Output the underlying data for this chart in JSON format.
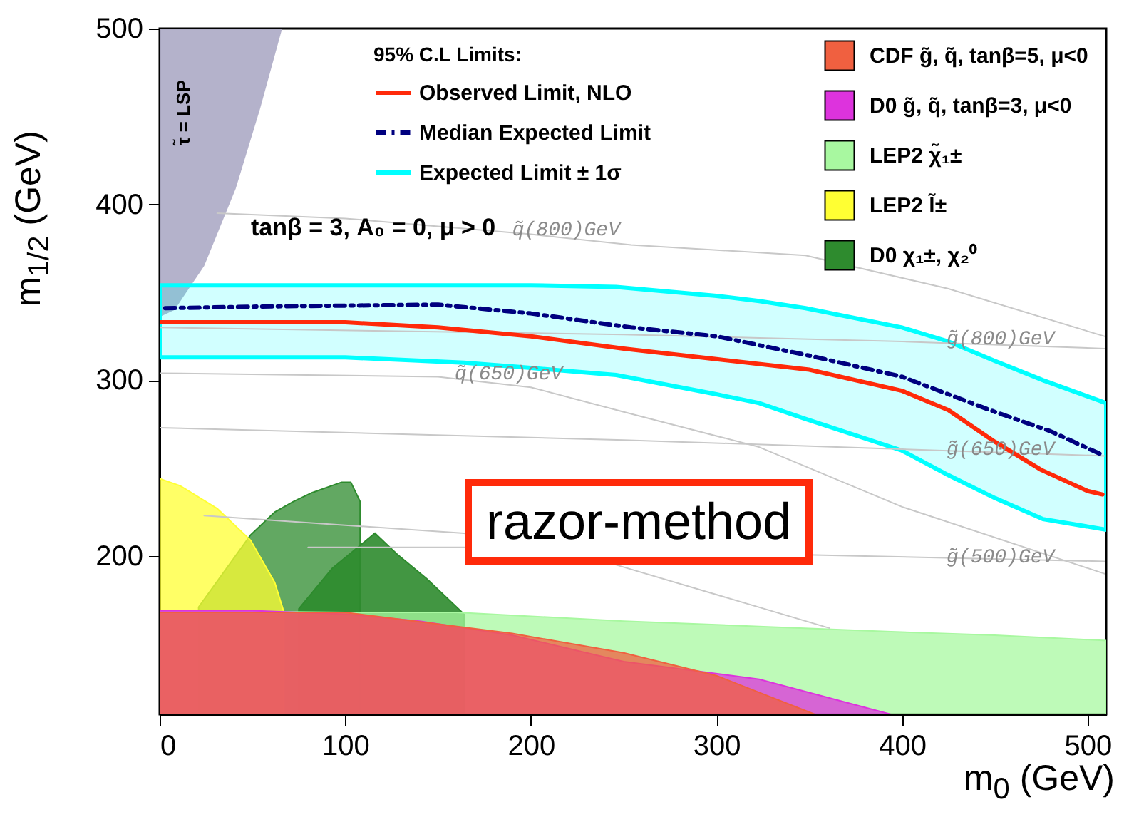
{
  "chart_data": {
    "type": "line",
    "xlabel": "m$_{0}$ (GeV)",
    "ylabel": "m$_{1/2}$ (GeV)",
    "legend_title": "95% C.L Limits:",
    "legend": "top right",
    "xlim": [
      0,
      510
    ],
    "ylim": [
      110,
      500
    ],
    "xticks": [
      0,
      100,
      200,
      300,
      400,
      500
    ],
    "yticks": [
      200,
      300,
      400,
      500
    ],
    "series": [
      {
        "name": "CDF  g̃, q̃, tanβ=5, μ<0",
        "type": "area",
        "color": "#f06040",
        "x": [
          0,
          100,
          190,
          250,
          300,
          353
        ],
        "values": [
          168,
          168,
          156,
          145,
          132,
          110
        ]
      },
      {
        "name": "D0  g̃, q̃, tanβ=3, μ<0",
        "type": "area",
        "color": "#dd33dd",
        "x": [
          0,
          50,
          100,
          140,
          190,
          250,
          323,
          394
        ],
        "values": [
          169,
          169,
          167,
          163,
          155,
          140,
          130,
          110
        ]
      },
      {
        "name": "LEP2  χ̃₁±",
        "type": "area",
        "color": "#a8f8a0",
        "x": [
          0,
          100,
          160,
          250,
          323,
          394,
          450,
          510
        ],
        "values": [
          169,
          168,
          168,
          163,
          160,
          157,
          155,
          152
        ]
      },
      {
        "name": "LEP2  l̃±",
        "type": "area",
        "color": "#ffff33",
        "x": [
          0,
          11,
          31,
          49,
          62,
          67
        ],
        "values": [
          244,
          240,
          227,
          209,
          185,
          168
        ]
      },
      {
        "name": "D0  χ₁±, χ₂⁰",
        "type": "area",
        "color": "#2e8b2e",
        "x": [
          21,
          49,
          62,
          72,
          82,
          98,
          103,
          108
        ],
        "values": [
          171,
          212,
          225,
          231,
          236,
          242,
          242,
          231
        ]
      },
      {
        "type": "area",
        "color": "#2e8b2e",
        "x": [
          75,
          93,
          116,
          128,
          144,
          164
        ],
        "values": [
          170,
          193,
          213,
          201,
          187,
          167
        ]
      },
      {
        "type": "line",
        "color": "#b0aec8",
        "x": [
          0,
          8,
          24,
          41,
          54,
          66
        ],
        "values": [
          null,
          null,
          null,
          null,
          null,
          null
        ],
        "lower": [
          336,
          340,
          365,
          409,
          454,
          500
        ],
        "upper": [
          500,
          500,
          500,
          500,
          500,
          500
        ]
      },
      {
        "color": "#c8c8c8",
        "x": [
          31,
          100,
          200,
          254,
          348,
          425,
          509
        ],
        "values": [
          395,
          392,
          383,
          377,
          371,
          352,
          325
        ]
      },
      {
        "color": "#c8c8c8",
        "x": [
          0,
          250,
          400,
          509
        ],
        "values": [
          330,
          326,
          322,
          318
        ]
      },
      {
        "color": "#c8c8c8",
        "x": [
          0,
          150,
          200,
          250,
          323,
          400,
          509
        ],
        "values": [
          304,
          302,
          296,
          282,
          262,
          228,
          190
        ]
      },
      {
        "color": "#c8c8c8",
        "x": [
          0,
          250,
          509
        ],
        "values": [
          273,
          266,
          257
        ]
      },
      {
        "color": "#c8c8c8",
        "x": [
          80,
          164,
          509
        ],
        "values": [
          205,
          205,
          197
        ]
      },
      {
        "color": "#c8c8c8",
        "x": [
          24,
          164,
          246,
          361
        ],
        "values": [
          223,
          213,
          195,
          159
        ]
      },
      {
        "name": "Observed Limit, NLO",
        "color": "#ff2a0a",
        "x": [
          0,
          50,
          100,
          150,
          200,
          250,
          300,
          350,
          400,
          425,
          450,
          475,
          500,
          508
        ],
        "values": [
          333,
          333,
          333,
          330,
          325,
          318,
          312,
          306,
          294,
          283,
          265,
          249,
          237,
          235
        ]
      },
      {
        "name": "Median Expected Limit",
        "color": "#00007f",
        "line_style": "dashed",
        "x": [
          3,
          60,
          150,
          200,
          254,
          300,
          350,
          400,
          450,
          480,
          509
        ],
        "values": [
          341,
          342,
          343,
          338,
          330,
          325,
          314,
          302,
          282,
          271,
          257
        ]
      },
      {
        "name": "Expected Limit ± 1σ",
        "color": "#00ffff",
        "line_style": "solid",
        "x": [
          0,
          100,
          164,
          200,
          246,
          300,
          323,
          348,
          400,
          425,
          450,
          476,
          510
        ],
        "values": [
          null,
          null,
          null,
          null,
          null,
          null,
          null,
          null,
          null,
          null,
          null,
          null,
          null
        ],
        "lower": [
          313,
          313,
          310,
          307,
          303,
          292,
          287,
          278,
          260,
          246,
          233,
          221,
          215
        ],
        "upper": [
          354,
          354,
          354,
          354,
          353,
          348,
          345,
          341,
          330,
          322,
          311,
          300,
          287
        ]
      }
    ],
    "annotations": [
      "tanβ = 3, A₀ = 0, μ > 0",
      "razor-method",
      "τ̃ = LSP",
      {
        "text": "q̃(800)GeV",
        "x": 190,
        "y": 384
      },
      {
        "text": "g̃(800)GeV",
        "x": 424,
        "y": 322
      },
      {
        "text": "q̃(650)GeV",
        "x": 159,
        "y": 302
      },
      {
        "text": "g̃(650)GeV",
        "x": 424,
        "y": 259
      },
      {
        "text": "g̃(500)GeV",
        "x": 424,
        "y": 198
      }
    ]
  }
}
